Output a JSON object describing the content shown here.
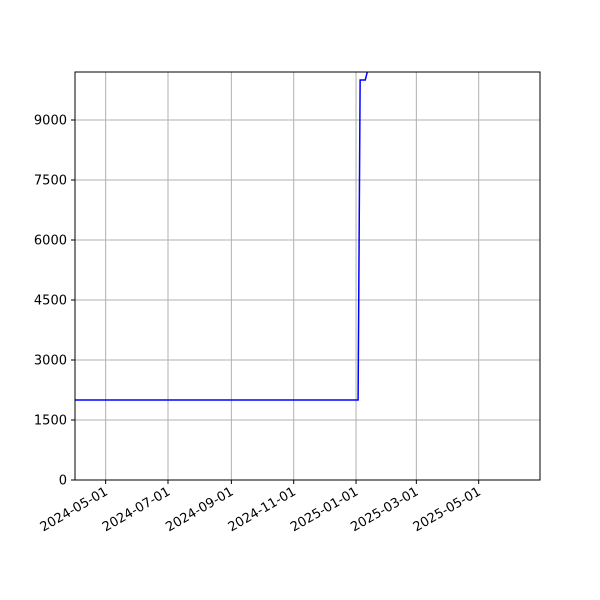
{
  "chart_data": {
    "type": "line",
    "title": "",
    "xlabel": "",
    "ylabel": "",
    "x_axis_type": "date",
    "xlim": [
      "2024-04-01",
      "2025-06-30"
    ],
    "ylim": [
      0,
      10200
    ],
    "grid": true,
    "x_ticks": [
      "2024-05-01",
      "2024-07-01",
      "2024-09-01",
      "2024-11-01",
      "2025-01-01",
      "2025-03-01",
      "2025-05-01"
    ],
    "y_ticks": [
      0,
      1500,
      3000,
      4500,
      6000,
      7500,
      9000
    ],
    "series": [
      {
        "name": "",
        "color": "#0000ff",
        "x": [
          "2024-04-01",
          "2025-01-03",
          "2025-01-05",
          "2025-01-10",
          "2025-01-12"
        ],
        "y": [
          2000,
          2000,
          10000,
          10000,
          10200
        ]
      }
    ]
  }
}
